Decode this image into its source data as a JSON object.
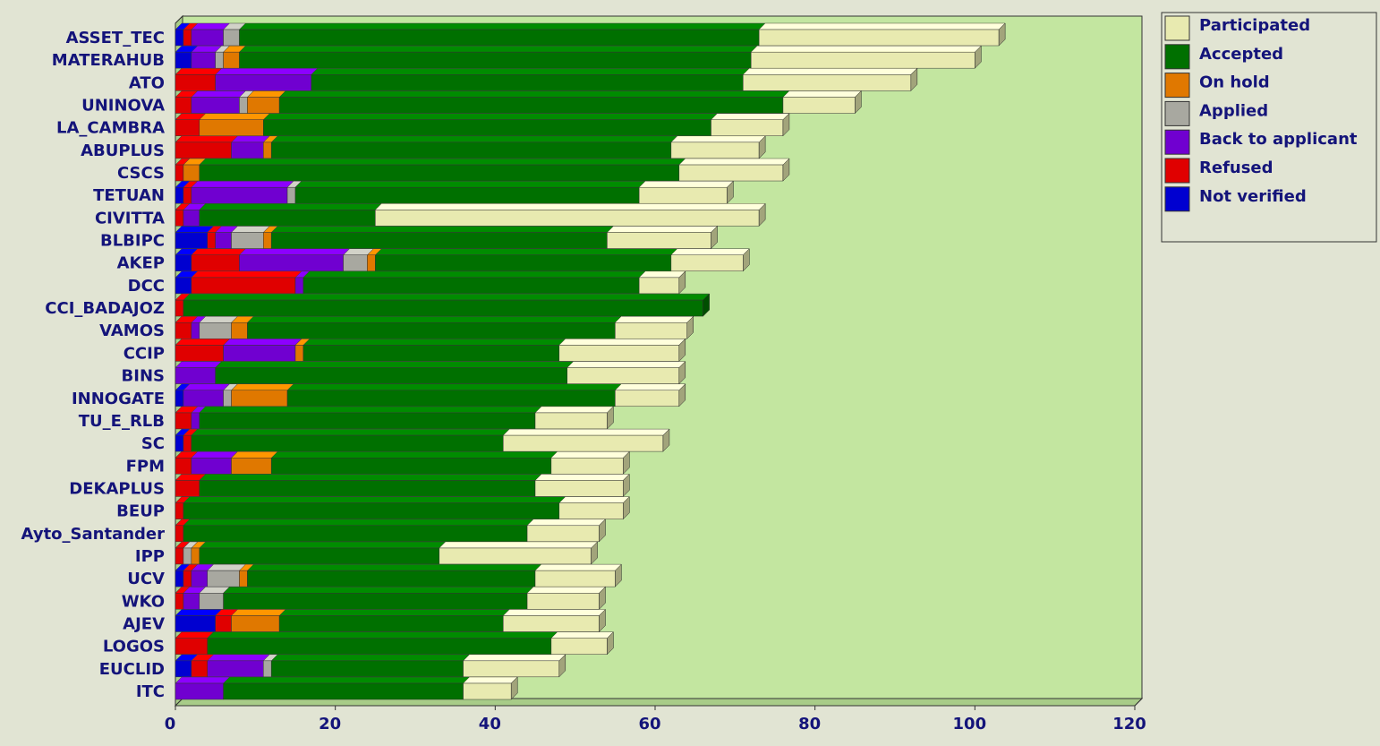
{
  "chart_data": {
    "type": "stacked_barh",
    "categories": [
      "ASSET_TEC",
      "MATERAHUB",
      "ATO",
      "UNINOVA",
      "LA_CAMBRA",
      "ABUPLUS",
      "CSCS",
      "TETUAN",
      "CIVITTA",
      "BLBIPC",
      "AKEP",
      "DCC",
      "CCI_BADAJOZ",
      "VAMOS",
      "CCIP",
      "BINS",
      "INNOGATE",
      "TU_E_RLB",
      "SC",
      "FPM",
      "DEKAPLUS",
      "BEUP",
      "Ayto_Santander",
      "IPP",
      "UCV",
      "WKO",
      "AJEV",
      "LOGOS",
      "EUCLID",
      "ITC"
    ],
    "series": [
      {
        "name": "Not verified",
        "color": "#0000d0",
        "values": [
          1,
          2,
          0,
          0,
          0,
          0,
          0,
          1,
          0,
          4,
          2,
          2,
          0,
          0,
          0,
          0,
          1,
          0,
          1,
          0,
          0,
          0,
          0,
          0,
          1,
          0,
          5,
          0,
          2,
          0
        ]
      },
      {
        "name": "Refused",
        "color": "#e00000",
        "values": [
          1,
          0,
          5,
          2,
          3,
          7,
          1,
          1,
          1,
          1,
          6,
          13,
          1,
          2,
          6,
          0,
          0,
          2,
          1,
          2,
          3,
          1,
          1,
          1,
          1,
          1,
          2,
          4,
          2,
          0
        ]
      },
      {
        "name": "Back to applicant",
        "color": "#7000d0",
        "values": [
          4,
          3,
          12,
          6,
          0,
          4,
          0,
          12,
          2,
          2,
          13,
          1,
          0,
          1,
          9,
          5,
          5,
          1,
          0,
          5,
          0,
          0,
          0,
          0,
          2,
          2,
          0,
          0,
          7,
          6
        ]
      },
      {
        "name": "Applied",
        "color": "#a8a8a0",
        "values": [
          2,
          1,
          0,
          1,
          0,
          0,
          0,
          1,
          0,
          4,
          3,
          0,
          0,
          4,
          0,
          0,
          1,
          0,
          0,
          0,
          0,
          0,
          0,
          1,
          4,
          3,
          0,
          0,
          1,
          0
        ]
      },
      {
        "name": "On hold",
        "color": "#e07800",
        "values": [
          0,
          2,
          0,
          4,
          8,
          1,
          2,
          0,
          0,
          1,
          1,
          0,
          0,
          2,
          1,
          0,
          7,
          0,
          0,
          5,
          0,
          0,
          0,
          1,
          1,
          0,
          6,
          0,
          0,
          0
        ]
      },
      {
        "name": "Accepted",
        "color": "#007000",
        "values": [
          65,
          64,
          54,
          63,
          56,
          50,
          60,
          43,
          22,
          42,
          37,
          42,
          65,
          46,
          32,
          44,
          41,
          42,
          39,
          35,
          42,
          47,
          43,
          30,
          36,
          38,
          28,
          43,
          24,
          30
        ]
      },
      {
        "name": "Participated",
        "color": "#e8eab0",
        "values": [
          30,
          28,
          21,
          9,
          9,
          11,
          13,
          11,
          48,
          13,
          9,
          5,
          0,
          9,
          15,
          14,
          8,
          9,
          20,
          9,
          11,
          8,
          9,
          19,
          10,
          9,
          12,
          7,
          12,
          6
        ]
      }
    ],
    "xlim": [
      0,
      120
    ],
    "xticks": [
      0,
      20,
      40,
      60,
      80,
      100,
      120
    ],
    "legend": "upper right"
  }
}
